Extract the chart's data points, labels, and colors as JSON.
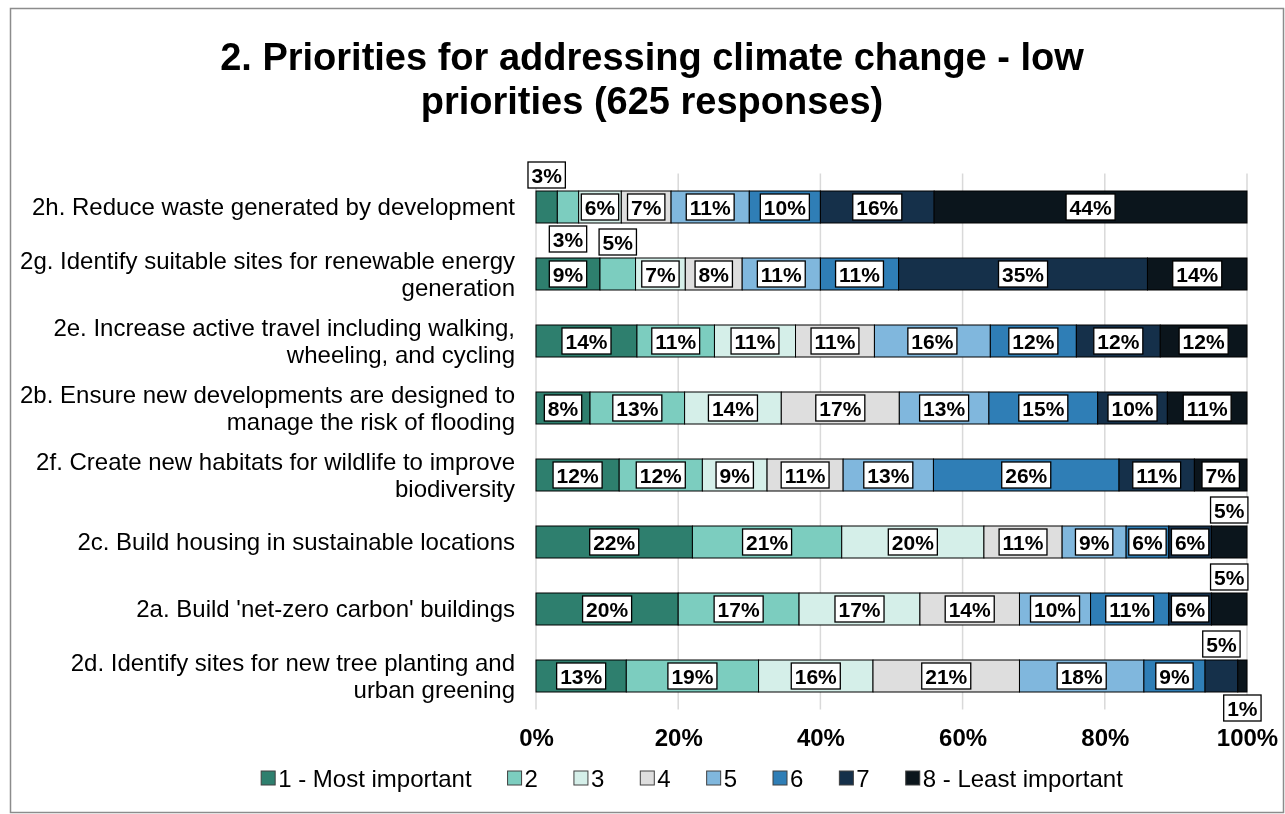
{
  "chart_data": {
    "type": "bar",
    "orientation": "horizontal",
    "stacked": true,
    "title": "2. Priorities for addressing climate change - low priorities (625 responses)",
    "categories": [
      "2h. Reduce waste generated by development",
      "2g. Identify suitable sites for renewable energy generation",
      "2e. Increase active travel including walking, wheeling, and cycling",
      "2b. Ensure new developments are designed to manage the risk of flooding",
      "2f. Create new habitats for wildlife to improve biodiversity",
      "2c. Build housing in sustainable locations",
      "2a. Build 'net-zero carbon' buildings",
      "2d. Identify sites for new tree planting and urban greening"
    ],
    "series": [
      {
        "name": "1 - Most important",
        "color": "#2e7f6e",
        "values": [
          3,
          9,
          14.2,
          7.6,
          11.7,
          22,
          20,
          12.7
        ],
        "value_labels": [
          "3%",
          "9%",
          "14%",
          "8%",
          "12%",
          "22%",
          "20%",
          "13%"
        ]
      },
      {
        "name": "2",
        "color": "#7ccdbf",
        "values": [
          3,
          5,
          10.9,
          13.3,
          11.7,
          21,
          17,
          18.6
        ],
        "value_labels": [
          "3%",
          "5%",
          "11%",
          "13%",
          "12%",
          "21%",
          "17%",
          "19%"
        ]
      },
      {
        "name": "3",
        "color": "#d5efe9",
        "values": [
          6,
          7,
          11.4,
          13.6,
          9.1,
          20,
          17,
          16.1
        ],
        "value_labels": [
          "6%",
          "7%",
          "11%",
          "14%",
          "9%",
          "20%",
          "17%",
          "16%"
        ]
      },
      {
        "name": "4",
        "color": "#dedede",
        "values": [
          7,
          8,
          11.1,
          16.6,
          10.7,
          11,
          14,
          20.6
        ],
        "value_labels": [
          "7%",
          "8%",
          "11%",
          "17%",
          "11%",
          "11%",
          "14%",
          "21%"
        ]
      },
      {
        "name": "5",
        "color": "#80b7dd",
        "values": [
          11,
          11,
          16.3,
          12.6,
          12.7,
          9,
          10,
          17.5
        ],
        "value_labels": [
          "11%",
          "11%",
          "16%",
          "13%",
          "13%",
          "9%",
          "10%",
          "18%"
        ]
      },
      {
        "name": "6",
        "color": "#2f7eb6",
        "values": [
          10,
          11,
          12.1,
          15.3,
          26.1,
          6,
          11,
          8.6
        ],
        "value_labels": [
          "10%",
          "11%",
          "12%",
          "15%",
          "26%",
          "6%",
          "11%",
          "9%"
        ]
      },
      {
        "name": "7",
        "color": "#15304a",
        "values": [
          16,
          35,
          11.8,
          9.8,
          10.6,
          6,
          6,
          4.6
        ],
        "value_labels": [
          "16%",
          "35%",
          "12%",
          "10%",
          "11%",
          "6%",
          "6%",
          "5%"
        ]
      },
      {
        "name": "8 - Least important",
        "color": "#0b151c",
        "values": [
          44,
          14,
          12.2,
          11.2,
          7.4,
          5,
          5,
          1.3
        ],
        "value_labels": [
          "44%",
          "14%",
          "12%",
          "11%",
          "7%",
          "5%",
          "5%",
          "1%"
        ]
      }
    ],
    "xlim": [
      0,
      100
    ],
    "xticks": [
      {
        "value": 0,
        "label": "0%"
      },
      {
        "value": 20,
        "label": "20%"
      },
      {
        "value": 40,
        "label": "40%"
      },
      {
        "value": 60,
        "label": "60%"
      },
      {
        "value": 80,
        "label": "80%"
      },
      {
        "value": 100,
        "label": "100%"
      }
    ],
    "grid": "x",
    "legend": "bottom"
  }
}
